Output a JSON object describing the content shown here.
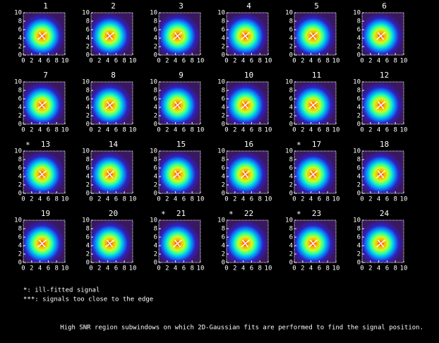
{
  "chart_data": [
    {
      "type": "heatmap",
      "title": "1",
      "xlim": [
        0,
        10
      ],
      "ylim": [
        0,
        10
      ],
      "xticks": [
        0,
        2,
        4,
        6,
        8,
        10
      ],
      "yticks": [
        0,
        2,
        4,
        6,
        8,
        10
      ]
    },
    {
      "type": "heatmap",
      "title": "2",
      "xlim": [
        0,
        10
      ],
      "ylim": [
        0,
        10
      ],
      "xticks": [
        0,
        2,
        4,
        6,
        8,
        10
      ],
      "yticks": [
        0,
        2,
        4,
        6,
        8,
        10
      ]
    },
    {
      "type": "heatmap",
      "title": "3",
      "xlim": [
        0,
        10
      ],
      "ylim": [
        0,
        10
      ],
      "xticks": [
        0,
        2,
        4,
        6,
        8,
        10
      ],
      "yticks": [
        0,
        2,
        4,
        6,
        8,
        10
      ]
    },
    {
      "type": "heatmap",
      "title": "4",
      "xlim": [
        0,
        10
      ],
      "ylim": [
        0,
        10
      ],
      "xticks": [
        0,
        2,
        4,
        6,
        8,
        10
      ],
      "yticks": [
        0,
        2,
        4,
        6,
        8,
        10
      ]
    },
    {
      "type": "heatmap",
      "title": "5",
      "xlim": [
        0,
        10
      ],
      "ylim": [
        0,
        10
      ],
      "xticks": [
        0,
        2,
        4,
        6,
        8,
        10
      ],
      "yticks": [
        0,
        2,
        4,
        6,
        8,
        10
      ]
    },
    {
      "type": "heatmap",
      "title": "6",
      "xlim": [
        0,
        10
      ],
      "ylim": [
        0,
        10
      ],
      "xticks": [
        0,
        2,
        4,
        6,
        8,
        10
      ],
      "yticks": [
        0,
        2,
        4,
        6,
        8,
        10
      ]
    },
    {
      "type": "heatmap",
      "title": "7",
      "xlim": [
        0,
        10
      ],
      "ylim": [
        0,
        10
      ],
      "xticks": [
        0,
        2,
        4,
        6,
        8,
        10
      ],
      "yticks": [
        0,
        2,
        4,
        6,
        8,
        10
      ]
    },
    {
      "type": "heatmap",
      "title": "8",
      "xlim": [
        0,
        10
      ],
      "ylim": [
        0,
        10
      ],
      "xticks": [
        0,
        2,
        4,
        6,
        8,
        10
      ],
      "yticks": [
        0,
        2,
        4,
        6,
        8,
        10
      ]
    },
    {
      "type": "heatmap",
      "title": "9",
      "xlim": [
        0,
        10
      ],
      "ylim": [
        0,
        10
      ],
      "xticks": [
        0,
        2,
        4,
        6,
        8,
        10
      ],
      "yticks": [
        0,
        2,
        4,
        6,
        8,
        10
      ]
    },
    {
      "type": "heatmap",
      "title": "10",
      "xlim": [
        0,
        10
      ],
      "ylim": [
        0,
        10
      ],
      "xticks": [
        0,
        2,
        4,
        6,
        8,
        10
      ],
      "yticks": [
        0,
        2,
        4,
        6,
        8,
        10
      ]
    },
    {
      "type": "heatmap",
      "title": "11",
      "xlim": [
        0,
        10
      ],
      "ylim": [
        0,
        10
      ],
      "xticks": [
        0,
        2,
        4,
        6,
        8,
        10
      ],
      "yticks": [
        0,
        2,
        4,
        6,
        8,
        10
      ]
    },
    {
      "type": "heatmap",
      "title": "12",
      "xlim": [
        0,
        10
      ],
      "ylim": [
        0,
        10
      ],
      "xticks": [
        0,
        2,
        4,
        6,
        8,
        10
      ],
      "yticks": [
        0,
        2,
        4,
        6,
        8,
        10
      ]
    },
    {
      "type": "heatmap",
      "title": "13",
      "flag": "*",
      "xlim": [
        0,
        10
      ],
      "ylim": [
        0,
        10
      ],
      "xticks": [
        0,
        2,
        4,
        6,
        8,
        10
      ],
      "yticks": [
        0,
        2,
        4,
        6,
        8,
        10
      ]
    },
    {
      "type": "heatmap",
      "title": "14",
      "xlim": [
        0,
        10
      ],
      "ylim": [
        0,
        10
      ],
      "xticks": [
        0,
        2,
        4,
        6,
        8,
        10
      ],
      "yticks": [
        0,
        2,
        4,
        6,
        8,
        10
      ]
    },
    {
      "type": "heatmap",
      "title": "15",
      "xlim": [
        0,
        10
      ],
      "ylim": [
        0,
        10
      ],
      "xticks": [
        0,
        2,
        4,
        6,
        8,
        10
      ],
      "yticks": [
        0,
        2,
        4,
        6,
        8,
        10
      ]
    },
    {
      "type": "heatmap",
      "title": "16",
      "xlim": [
        0,
        10
      ],
      "ylim": [
        0,
        10
      ],
      "xticks": [
        0,
        2,
        4,
        6,
        8,
        10
      ],
      "yticks": [
        0,
        2,
        4,
        6,
        8,
        10
      ]
    },
    {
      "type": "heatmap",
      "title": "17",
      "flag": "*",
      "xlim": [
        0,
        10
      ],
      "ylim": [
        0,
        10
      ],
      "xticks": [
        0,
        2,
        4,
        6,
        8,
        10
      ],
      "yticks": [
        0,
        2,
        4,
        6,
        8,
        10
      ]
    },
    {
      "type": "heatmap",
      "title": "18",
      "xlim": [
        0,
        10
      ],
      "ylim": [
        0,
        10
      ],
      "xticks": [
        0,
        2,
        4,
        6,
        8,
        10
      ],
      "yticks": [
        0,
        2,
        4,
        6,
        8,
        10
      ]
    },
    {
      "type": "heatmap",
      "title": "19",
      "xlim": [
        0,
        10
      ],
      "ylim": [
        0,
        10
      ],
      "xticks": [
        0,
        2,
        4,
        6,
        8,
        10
      ],
      "yticks": [
        0,
        2,
        4,
        6,
        8,
        10
      ]
    },
    {
      "type": "heatmap",
      "title": "20",
      "xlim": [
        0,
        10
      ],
      "ylim": [
        0,
        10
      ],
      "xticks": [
        0,
        2,
        4,
        6,
        8,
        10
      ],
      "yticks": [
        0,
        2,
        4,
        6,
        8,
        10
      ]
    },
    {
      "type": "heatmap",
      "title": "21",
      "flag": "*",
      "xlim": [
        0,
        10
      ],
      "ylim": [
        0,
        10
      ],
      "xticks": [
        0,
        2,
        4,
        6,
        8,
        10
      ],
      "yticks": [
        0,
        2,
        4,
        6,
        8,
        10
      ]
    },
    {
      "type": "heatmap",
      "title": "22",
      "flag": "*",
      "xlim": [
        0,
        10
      ],
      "ylim": [
        0,
        10
      ],
      "xticks": [
        0,
        2,
        4,
        6,
        8,
        10
      ],
      "yticks": [
        0,
        2,
        4,
        6,
        8,
        10
      ]
    },
    {
      "type": "heatmap",
      "title": "23",
      "flag": "*",
      "xlim": [
        0,
        10
      ],
      "ylim": [
        0,
        10
      ],
      "xticks": [
        0,
        2,
        4,
        6,
        8,
        10
      ],
      "yticks": [
        0,
        2,
        4,
        6,
        8,
        10
      ]
    },
    {
      "type": "heatmap",
      "title": "24",
      "xlim": [
        0,
        10
      ],
      "ylim": [
        0,
        10
      ],
      "xticks": [
        0,
        2,
        4,
        6,
        8,
        10
      ],
      "yticks": [
        0,
        2,
        4,
        6,
        8,
        10
      ]
    }
  ],
  "notes": [
    "*: ill-fitted signal",
    "***: signals too close to the edge"
  ],
  "caption": "High SNR region subwindows on which 2D-Gaussian fits are performed to find the signal position."
}
